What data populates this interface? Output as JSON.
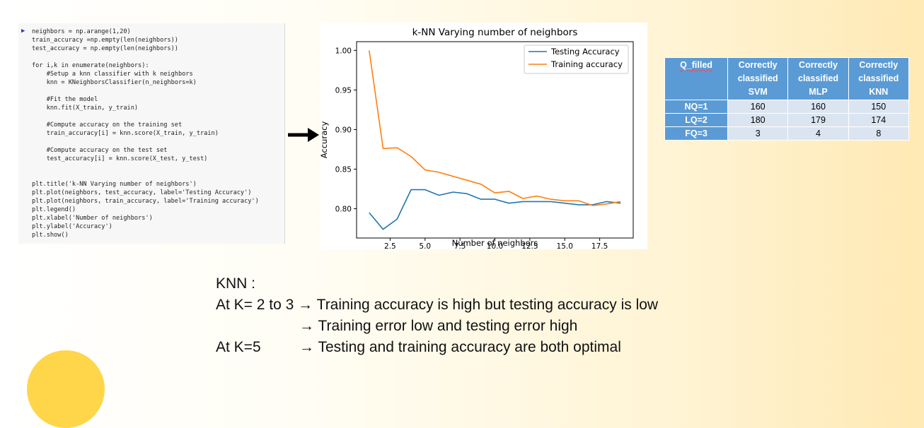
{
  "code": {
    "prompt": "▶",
    "lines": [
      "neighbors = np.arange(1,20)",
      "train_accuracy =np.empty(len(neighbors))",
      "test_accuracy = np.empty(len(neighbors))",
      "",
      "for i,k in enumerate(neighbors):",
      "    #Setup a knn classifier with k neighbors",
      "    knn = KNeighborsClassifier(n_neighbors=k)",
      "",
      "    #Fit the model",
      "    knn.fit(X_train, y_train)",
      "",
      "    #Compute accuracy on the training set",
      "    train_accuracy[i] = knn.score(X_train, y_train)",
      "",
      "    #Compute accuracy on the test set",
      "    test_accuracy[i] = knn.score(X_test, y_test)",
      "",
      "",
      "plt.title('k-NN Varying number of neighbors')",
      "plt.plot(neighbors, test_accuracy, label='Testing Accuracy')",
      "plt.plot(neighbors, train_accuracy, label='Training accuracy')",
      "plt.legend()",
      "plt.xlabel('Number of neighbors')",
      "plt.ylabel('Accuracy')",
      "plt.show()"
    ]
  },
  "chart_data": {
    "type": "line",
    "title": "k-NN Varying number of neighbors",
    "xlabel": "Number of neighbors",
    "ylabel": "Accuracy",
    "x": [
      1,
      2,
      3,
      4,
      5,
      6,
      7,
      8,
      9,
      10,
      11,
      12,
      13,
      14,
      15,
      16,
      17,
      18,
      19
    ],
    "series": [
      {
        "name": "Testing Accuracy",
        "color": "#1f77b4",
        "values": [
          0.795,
          0.774,
          0.787,
          0.824,
          0.824,
          0.817,
          0.821,
          0.819,
          0.812,
          0.812,
          0.807,
          0.809,
          0.809,
          0.809,
          0.807,
          0.805,
          0.805,
          0.809,
          0.807
        ]
      },
      {
        "name": "Training accuracy",
        "color": "#ff7f0e",
        "values": [
          1.0,
          0.876,
          0.877,
          0.866,
          0.849,
          0.846,
          0.841,
          0.836,
          0.831,
          0.82,
          0.822,
          0.813,
          0.816,
          0.812,
          0.81,
          0.81,
          0.804,
          0.806,
          0.809
        ]
      }
    ],
    "xticks": [
      2.5,
      5.0,
      7.5,
      10.0,
      12.5,
      15.0,
      17.5
    ],
    "xtick_labels": [
      "2.5",
      "5.0",
      "7.5",
      "10.0",
      "12.5",
      "15.0",
      "17.5"
    ],
    "yticks": [
      0.8,
      0.85,
      0.9,
      0.95,
      1.0
    ],
    "ytick_labels": [
      "0.80",
      "0.85",
      "0.90",
      "0.95",
      "1.00"
    ],
    "xlim": [
      0.1,
      19.9
    ],
    "ylim": [
      0.763,
      1.011
    ],
    "grid": false,
    "legend": "top-right"
  },
  "table": {
    "headers": [
      "Q_filled",
      "Correctly classified SVM",
      "Correctly classified MLP",
      "Correctly classified KNN"
    ],
    "rows": [
      [
        "NQ=1",
        "160",
        "160",
        "150"
      ],
      [
        "LQ=2",
        "180",
        "179",
        "174"
      ],
      [
        "FQ=3",
        "3",
        "4",
        "8"
      ]
    ]
  },
  "notes": {
    "title": "KNN :",
    "line1_left": "At K= 2 to 3",
    "line1_text": "Training accuracy is high but testing accuracy is low",
    "line2_text": "Training error low and testing error high",
    "line3_left": "At K=5",
    "line3_text": "Testing and training accuracy are both optimal",
    "arrow_glyph": "→"
  }
}
